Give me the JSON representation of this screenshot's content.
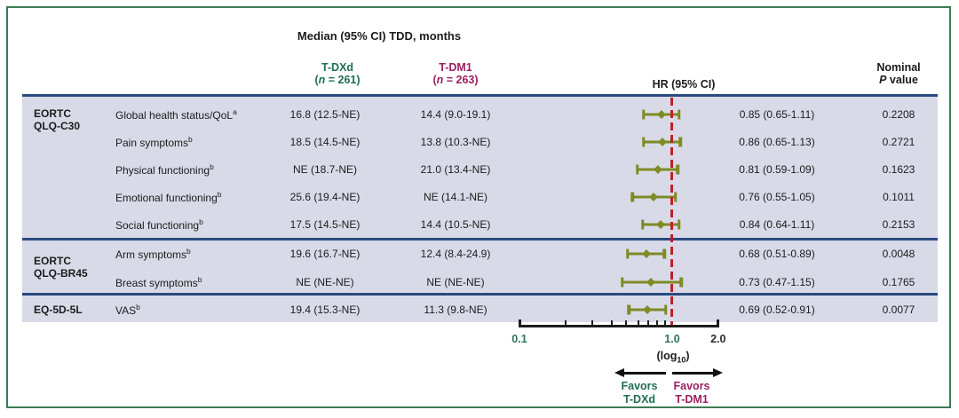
{
  "figure": {
    "title": "Median (95% CI) TDD, months",
    "columns": {
      "tdxd": {
        "name": "T-DXd",
        "n_pre": "(",
        "n_italic": "n",
        "n_post": " = 261)"
      },
      "tdm1": {
        "name": "T-DM1",
        "n_pre": "(",
        "n_italic": "n",
        "n_post": " = 263)"
      },
      "hr_label": "HR (95% CI)",
      "nominal_line1": "Nominal",
      "p_italic": "P",
      "p_rest": " value"
    }
  },
  "chart_data": {
    "type": "forest",
    "title": "Median (95% CI) TDD, months",
    "x_axis": {
      "scale": "log10",
      "min": 0.1,
      "max": 2.0,
      "tick_labels": [
        {
          "text": "0.1",
          "value": 0.1,
          "green": true
        },
        {
          "text": "1.0",
          "value": 1.0,
          "green": true
        },
        {
          "text": "2.0",
          "value": 2.0,
          "green": false
        }
      ],
      "minor_ticks": [
        0.2,
        0.3,
        0.4,
        0.5,
        0.6,
        0.7,
        0.8,
        0.9
      ],
      "log_note_pre": "(log",
      "log_note_sub": "10",
      "log_note_post": ")"
    },
    "reference_line": 1.0,
    "sections": [
      {
        "group": [
          "EORTC",
          "QLQ-C30"
        ],
        "rows": [
          {
            "label": "Global health status/QoL",
            "sup": "a",
            "tdxd": "16.8 (12.5-NE)",
            "tdm1": "14.4 (9.0-19.1)",
            "hr": 0.85,
            "ci_low": 0.65,
            "ci_high": 1.11,
            "hr_text": "0.85 (0.65-1.11)",
            "p": "0.2208"
          },
          {
            "label": "Pain symptoms",
            "sup": "b",
            "tdxd": "18.5 (14.5-NE)",
            "tdm1": "13.8 (10.3-NE)",
            "hr": 0.86,
            "ci_low": 0.65,
            "ci_high": 1.13,
            "hr_text": "0.86 (0.65-1.13)",
            "p": "0.2721"
          },
          {
            "label": "Physical functioning",
            "sup": "b",
            "tdxd": "NE (18.7-NE)",
            "tdm1": "21.0 (13.4-NE)",
            "hr": 0.81,
            "ci_low": 0.59,
            "ci_high": 1.09,
            "hr_text": "0.81 (0.59-1.09)",
            "p": "0.1623"
          },
          {
            "label": "Emotional functioning",
            "sup": "b",
            "tdxd": "25.6 (19.4-NE)",
            "tdm1": "NE (14.1-NE)",
            "hr": 0.76,
            "ci_low": 0.55,
            "ci_high": 1.05,
            "hr_text": "0.76 (0.55-1.05)",
            "p": "0.1011"
          },
          {
            "label": "Social functioning",
            "sup": "b",
            "tdxd": "17.5 (14.5-NE)",
            "tdm1": "14.4 (10.5-NE)",
            "hr": 0.84,
            "ci_low": 0.64,
            "ci_high": 1.11,
            "hr_text": "0.84 (0.64-1.11)",
            "p": "0.2153"
          }
        ]
      },
      {
        "group": [
          "EORTC",
          "QLQ-BR45"
        ],
        "rows": [
          {
            "label": "Arm symptoms",
            "sup": "b",
            "tdxd": "19.6 (16.7-NE)",
            "tdm1": "12.4 (8.4-24.9)",
            "hr": 0.68,
            "ci_low": 0.51,
            "ci_high": 0.89,
            "hr_text": "0.68 (0.51-0.89)",
            "p": "0.0048"
          },
          {
            "label": "Breast symptoms",
            "sup": "b",
            "tdxd": "NE (NE-NE)",
            "tdm1": "NE (NE-NE)",
            "hr": 0.73,
            "ci_low": 0.47,
            "ci_high": 1.15,
            "hr_text": "0.73 (0.47-1.15)",
            "p": "0.1765"
          }
        ]
      },
      {
        "group": [
          "EQ-5D-5L",
          ""
        ],
        "rows": [
          {
            "label": "VAS",
            "sup": "b",
            "tdxd": "19.4 (15.3-NE)",
            "tdm1": "11.3 (9.8-NE)",
            "hr": 0.69,
            "ci_low": 0.52,
            "ci_high": 0.91,
            "hr_text": "0.69 (0.52-0.91)",
            "p": "0.0077"
          }
        ]
      }
    ],
    "legend": {
      "favors_left_line1": "Favors",
      "favors_left_line2": "T-DXd",
      "favors_right_line1": "Favors",
      "favors_right_line2": "T-DM1"
    }
  },
  "colors": {
    "tdxd_green": "#1f6f4f",
    "tdm1_magenta": "#9c1f63",
    "marker_olive": "#7e8b26",
    "reference_red": "#bf2127",
    "separator_navy": "#2a4b80",
    "band_background": "#d8dbe7",
    "frame_green": "#3c7c55",
    "axis_label_green": "#2e7558"
  }
}
